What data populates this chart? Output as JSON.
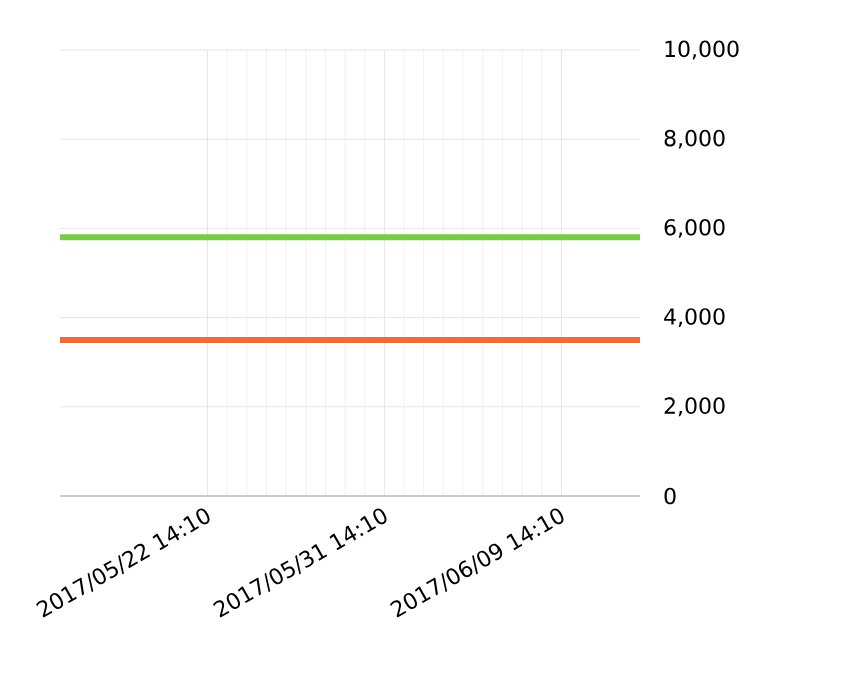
{
  "chart_data": {
    "type": "line",
    "xlim": [
      "2017-05-15T02:10",
      "2017-06-13T14:10"
    ],
    "xticks": [
      {
        "value": "2017-05-22T14:10",
        "label": "2017/05/22 14:10"
      },
      {
        "value": "2017-05-31T14:10",
        "label": "2017/05/31 14:10"
      },
      {
        "value": "2017-06-09T14:10",
        "label": "2017/06/09 14:10"
      }
    ],
    "ylim": [
      0,
      10000
    ],
    "yticks": [
      0,
      {
        "value": 2000,
        "label": "2,000"
      },
      {
        "value": 4000,
        "label": "4,000"
      },
      {
        "value": 6000,
        "label": "6,000"
      },
      {
        "value": 8000,
        "label": "8,000"
      },
      {
        "value": 10000,
        "label": "10,000"
      }
    ],
    "grid": true,
    "marker": "none",
    "line_style": "solid",
    "series": [
      {
        "color": "#77cc44",
        "x": [
          "2017-05-15T02:10",
          "2017-06-13T14:10"
        ],
        "values": [
          5800,
          5800
        ]
      },
      {
        "color": "#f26a3c",
        "x": [
          "2017-05-15T02:10",
          "2017-06-13T14:10"
        ],
        "values": [
          3500,
          3500
        ]
      }
    ]
  }
}
